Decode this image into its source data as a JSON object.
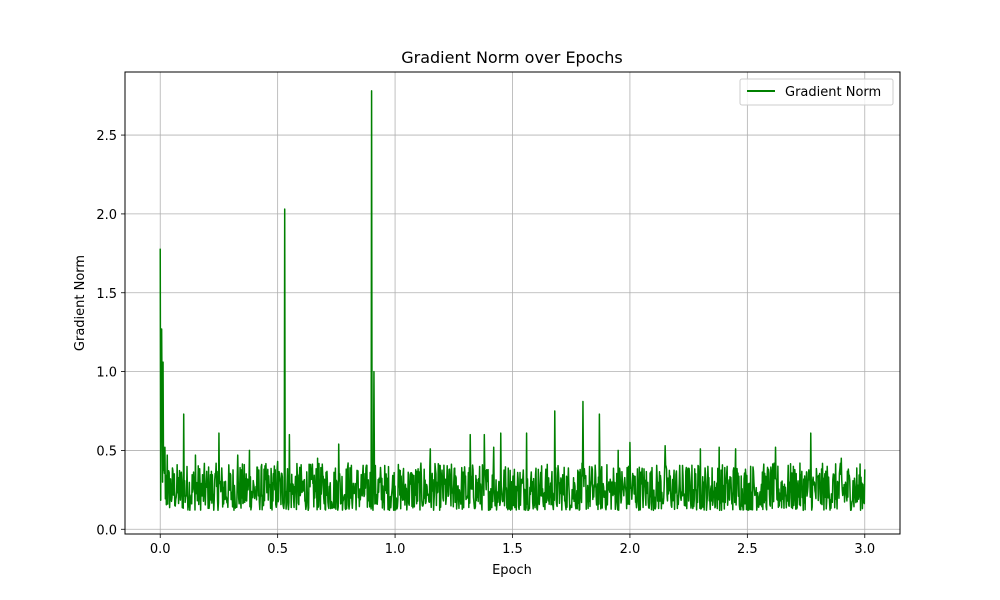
{
  "chart_data": {
    "type": "line",
    "title": "Gradient Norm over Epochs",
    "xlabel": "Epoch",
    "ylabel": "Gradient Norm",
    "xlim": [
      -0.15,
      3.15
    ],
    "ylim": [
      -0.03,
      2.9
    ],
    "xticks": [
      0.0,
      0.5,
      1.0,
      1.5,
      2.0,
      2.5,
      3.0
    ],
    "xtick_labels": [
      "0.0",
      "0.5",
      "1.0",
      "1.5",
      "2.0",
      "2.5",
      "3.0"
    ],
    "yticks": [
      0.0,
      0.5,
      1.0,
      1.5,
      2.0,
      2.5
    ],
    "ytick_labels": [
      "0.0",
      "0.5",
      "1.0",
      "1.5",
      "2.0",
      "2.5"
    ],
    "grid": true,
    "legend_position": "top-right",
    "colors": {
      "line": "#008000",
      "grid": "#b0b0b0",
      "axis": "#000000"
    },
    "series": [
      {
        "name": "Gradient Norm",
        "color": "#008000",
        "baseline": {
          "min": 0.12,
          "max": 0.42,
          "epoch_start": 0.0,
          "epoch_end": 3.0
        },
        "points": [
          [
            0.0,
            1.78
          ],
          [
            0.003,
            0.84
          ],
          [
            0.006,
            1.27
          ],
          [
            0.009,
            0.55
          ],
          [
            0.012,
            1.06
          ],
          [
            0.015,
            0.42
          ],
          [
            0.02,
            0.52
          ],
          [
            0.03,
            0.47
          ],
          [
            0.1,
            0.73
          ],
          [
            0.15,
            0.47
          ],
          [
            0.25,
            0.61
          ],
          [
            0.33,
            0.47
          ],
          [
            0.38,
            0.5
          ],
          [
            0.5,
            0.43
          ],
          [
            0.53,
            2.03
          ],
          [
            0.55,
            0.6
          ],
          [
            0.67,
            0.45
          ],
          [
            0.76,
            0.54
          ],
          [
            0.8,
            0.42
          ],
          [
            0.9,
            2.78
          ],
          [
            0.91,
            1.0
          ],
          [
            1.15,
            0.51
          ],
          [
            1.32,
            0.6
          ],
          [
            1.38,
            0.6
          ],
          [
            1.42,
            0.52
          ],
          [
            1.45,
            0.61
          ],
          [
            1.56,
            0.61
          ],
          [
            1.68,
            0.75
          ],
          [
            1.8,
            0.81
          ],
          [
            1.87,
            0.73
          ],
          [
            1.95,
            0.5
          ],
          [
            2.0,
            0.55
          ],
          [
            2.15,
            0.53
          ],
          [
            2.3,
            0.51
          ],
          [
            2.38,
            0.52
          ],
          [
            2.45,
            0.51
          ],
          [
            2.62,
            0.52
          ],
          [
            2.77,
            0.61
          ],
          [
            2.9,
            0.45
          ],
          [
            3.0,
            0.38
          ]
        ]
      }
    ]
  }
}
